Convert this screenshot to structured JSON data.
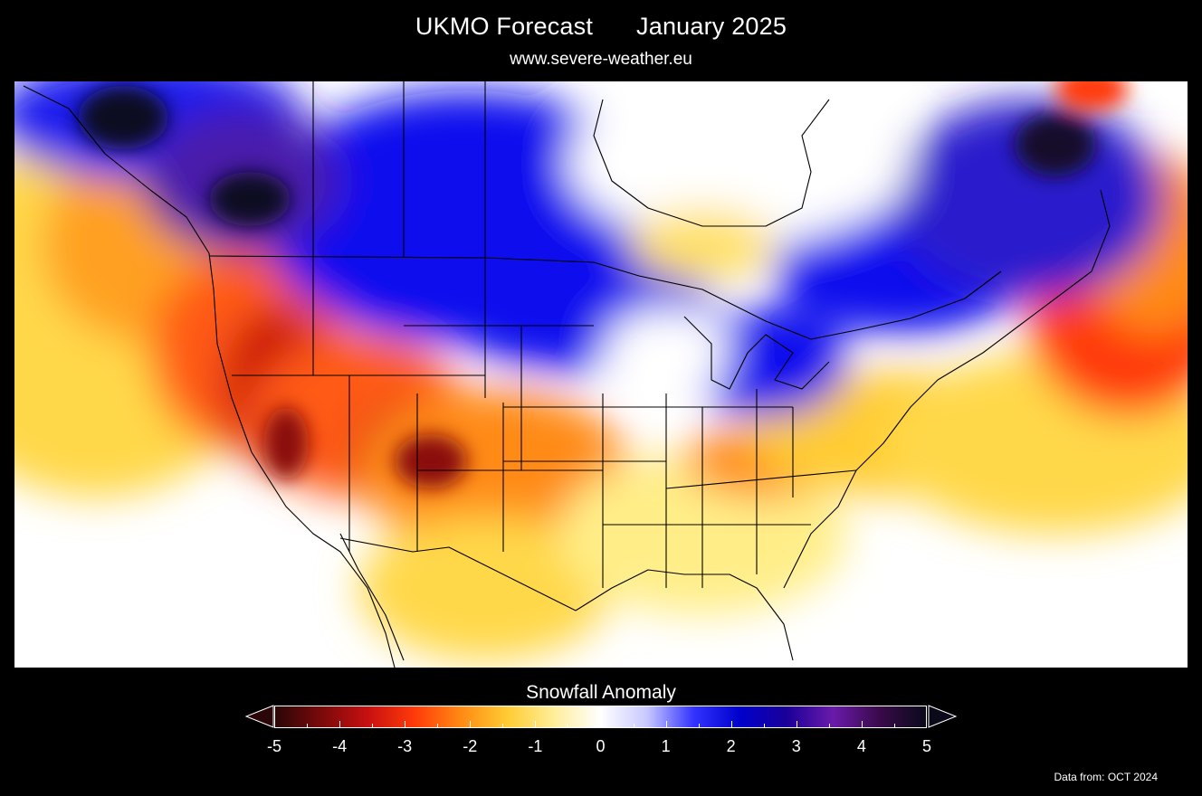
{
  "header": {
    "title": "UKMO Forecast",
    "period": "January 2025",
    "website": "www.severe-weather.eu"
  },
  "colorbar": {
    "title": "Snowfall Anomaly",
    "ticks": [
      "-5",
      "-4",
      "-3",
      "-2",
      "-1",
      "0",
      "1",
      "2",
      "3",
      "4",
      "5"
    ],
    "range": [
      -5,
      5
    ],
    "colors": [
      "#2a0608",
      "#7a0a0a",
      "#c81010",
      "#ff3a0a",
      "#ff8a14",
      "#ffcc33",
      "#ffee99",
      "#ffffff",
      "#c8c8ff",
      "#3333ff",
      "#0000cc",
      "#1a0099",
      "#6a1aaa",
      "#3a0a4a",
      "#0a0a1a"
    ]
  },
  "source": "Data from: OCT 2024",
  "map": {
    "region": "North America",
    "colors": {
      "background": "#ffffff",
      "border": "#000000"
    }
  }
}
